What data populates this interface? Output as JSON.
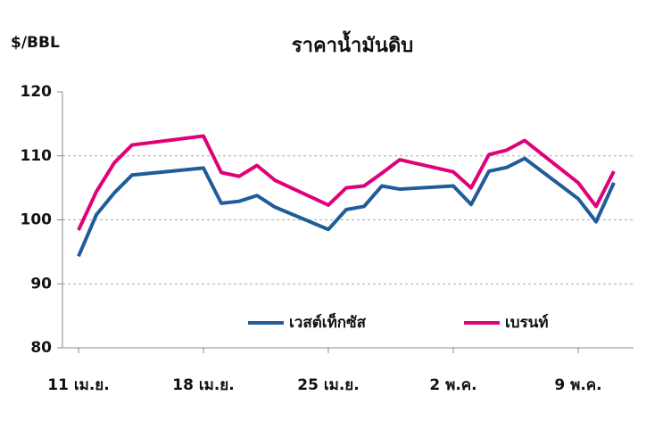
{
  "chart_data": {
    "type": "line",
    "title": "ราคาน้ำมันดิบ",
    "y_label": "$/BBL",
    "x": [
      11,
      12,
      13,
      14,
      18,
      19,
      20,
      21,
      22,
      25,
      26,
      27,
      28,
      29,
      32,
      33,
      34,
      35,
      36,
      39,
      40,
      41
    ],
    "series": [
      {
        "name": "เวสต์เท็กซัส",
        "color": "#1f5c99",
        "values": [
          94.3,
          100.8,
          104.2,
          107.0,
          108.1,
          102.6,
          102.9,
          103.8,
          102.0,
          98.5,
          101.6,
          102.1,
          105.3,
          104.8,
          105.3,
          102.4,
          107.6,
          108.2,
          109.6,
          103.3,
          99.7,
          105.8
        ]
      },
      {
        "name": "เบรนท์",
        "color": "#e0007a",
        "values": [
          98.4,
          104.4,
          108.9,
          111.7,
          113.1,
          107.4,
          106.8,
          108.5,
          106.2,
          102.3,
          105.0,
          105.3,
          107.3,
          109.4,
          107.5,
          105.0,
          110.2,
          110.9,
          112.4,
          105.8,
          102.1,
          107.6
        ]
      }
    ],
    "xlim": [
      10.1,
      42.1
    ],
    "xticks": [
      {
        "value": 11,
        "label": "11 เม.ย."
      },
      {
        "value": 18,
        "label": "18 เม.ย."
      },
      {
        "value": 25,
        "label": "25 เม.ย."
      },
      {
        "value": 32,
        "label": "2 พ.ค."
      },
      {
        "value": 39,
        "label": "9 พ.ค."
      }
    ],
    "ylim": [
      80,
      120
    ],
    "yticks": [
      80,
      90,
      100,
      110,
      120
    ],
    "grid": true
  }
}
